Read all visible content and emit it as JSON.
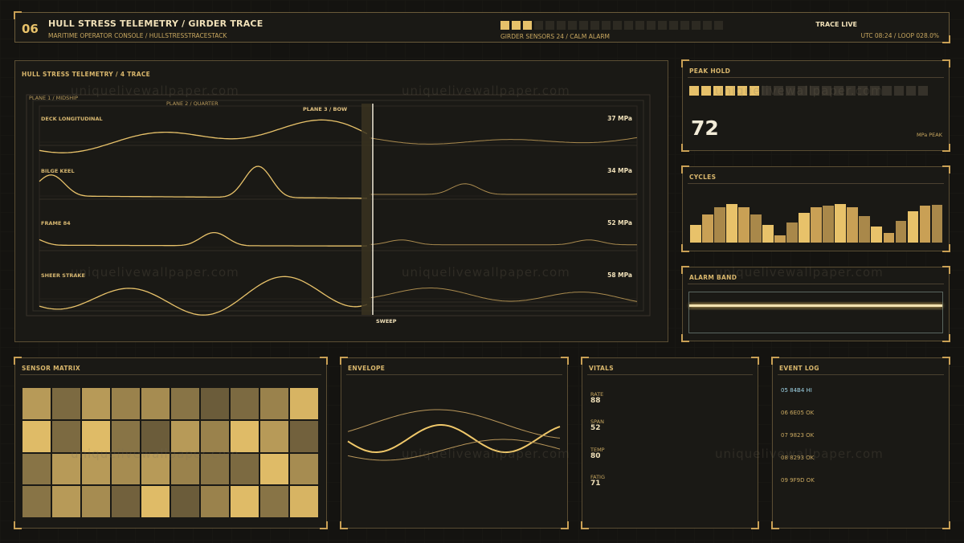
{
  "header": {
    "badge": "06",
    "title": "HULL STRESS TELEMETRY / GIRDER TRACE",
    "subtitle": "MARITIME OPERATOR CONSOLE / HULLSTRESSTRACESTACK",
    "blocks_total": 20,
    "blocks_on": 3,
    "sensors": "GIRDER SENSORS 24 / CALM ALARM",
    "live": "TRACE LIVE",
    "utc": "UTC 08:24 / LOOP 028.0%"
  },
  "trace": {
    "title": "HULL STRESS TELEMETRY / 4 TRACE",
    "planes": [
      "PLANE 1 / MIDSHIP",
      "PLANE 2 / QUARTER",
      "PLANE 3 / BOW"
    ],
    "sweep_label": "SWEEP",
    "channels": [
      {
        "name": "DECK LONGITUDINAL",
        "value": "37 MPa"
      },
      {
        "name": "BILGE KEEL",
        "value": "34 MPa"
      },
      {
        "name": "FRAME 84",
        "value": "52 MPa"
      },
      {
        "name": "SHEER STRAKE",
        "value": "58 MPa"
      }
    ]
  },
  "peak": {
    "title": "PEAK HOLD",
    "value": "72",
    "unit": "MPa PEAK",
    "blocks_total": 20,
    "blocks_on": 6
  },
  "cycles": {
    "title": "CYCLES",
    "bars": [
      0.33,
      0.52,
      0.66,
      0.71,
      0.66,
      0.53,
      0.33,
      0.13,
      0.37,
      0.55,
      0.66,
      0.68,
      0.71,
      0.66,
      0.5,
      0.3,
      0.18,
      0.4,
      0.58,
      0.68,
      0.7
    ]
  },
  "alarm": {
    "title": "ALARM BAND"
  },
  "matrix": {
    "title": "SENSOR MATRIX",
    "rows": [
      [
        0.72,
        0.38,
        0.72,
        0.55,
        0.62,
        0.45,
        0.28,
        0.38,
        0.55,
        0.9
      ],
      [
        0.95,
        0.38,
        0.95,
        0.45,
        0.28,
        0.72,
        0.55,
        0.95,
        0.72,
        0.32
      ],
      [
        0.45,
        0.72,
        0.72,
        0.62,
        0.72,
        0.55,
        0.45,
        0.38,
        0.95,
        0.62
      ],
      [
        0.45,
        0.72,
        0.62,
        0.32,
        0.95,
        0.28,
        0.55,
        0.95,
        0.45,
        0.9
      ]
    ]
  },
  "envelope": {
    "title": "ENVELOPE"
  },
  "vitals": {
    "title": "VITALS",
    "items": [
      {
        "label": "RATE",
        "value": "88"
      },
      {
        "label": "SPAN",
        "value": "52"
      },
      {
        "label": "TEMP",
        "value": "80"
      },
      {
        "label": "FATIG",
        "value": "71"
      }
    ]
  },
  "events": {
    "title": "EVENT LOG",
    "items": [
      {
        "text": "05 84B4 HI",
        "level": "hi"
      },
      {
        "text": "06 6E05 OK",
        "level": "ok"
      },
      {
        "text": "07 9823 OK",
        "level": "ok"
      },
      {
        "text": "08 8293 OK",
        "level": "ok"
      },
      {
        "text": "09 9F9D OK",
        "level": "ok"
      }
    ]
  },
  "colors": {
    "accent": "#e8c26a",
    "hi": "#9fd4e6",
    "panel": "#1a1915",
    "border": "#5a4d33"
  },
  "watermark": "uniquelivewallpaper.com"
}
